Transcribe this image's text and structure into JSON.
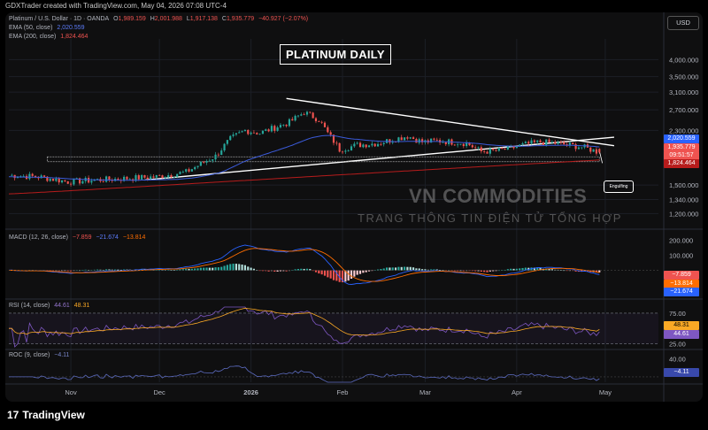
{
  "header": {
    "topline": "GDXTrader created with TradingView.com, May 04, 2026 07:08 UTC-4",
    "currency_button": "USD",
    "title_box": "PLATINUM DAILY",
    "engulfing_label": "Engulfing"
  },
  "legend": {
    "symbol": "Platinum / U.S. Dollar · 1D · OANDA",
    "o_label": "O",
    "o_value": "1,989.159",
    "h_label": "H",
    "h_value": "2,001.988",
    "l_label": "L",
    "l_value": "1,917.138",
    "c_label": "C",
    "c_value": "1,935.779",
    "change": "−40.927 (−2.07%)",
    "ema50_label": "EMA (50, close)",
    "ema50_value": "2,020.559",
    "ema200_label": "EMA (200, close)",
    "ema200_value": "1,824.464",
    "macd_label": "MACD (12, 26, close)",
    "macd_v1": "−7.859",
    "macd_v2": "−21.674",
    "macd_v3": "−13.814",
    "rsi_label": "RSI (14, close)",
    "rsi_v1": "44.61",
    "rsi_v2": "48.31",
    "roc_label": "ROC (9, close)",
    "roc_v1": "−4.11"
  },
  "watermark": {
    "line1": "VN COMMODITIES",
    "line2": "TRANG THÔNG TIN ĐIỆN TỬ TỔNG HỢP"
  },
  "footer": {
    "brand": "TradingView",
    "brand_mark": "17"
  },
  "price_tags": {
    "ema50": "2,020.559",
    "close": "1,935.779",
    "countdown": "09:51:57",
    "ema200": "1,824.464",
    "macd_a": "−7.859",
    "macd_b": "−13.814",
    "macd_c": "−21.674",
    "rsi_a": "48.31",
    "rsi_b": "44.61",
    "roc_a": "−4.11"
  },
  "colors": {
    "up": "#26a69a",
    "down": "#ef5350",
    "ema50": "#3b5bdb",
    "ema200": "#b71c1c",
    "macd": "#2962ff",
    "signal": "#ff6d00",
    "rsi": "#7e57c2",
    "rsi_ma": "#f9a825",
    "roc": "#5c6bc0"
  },
  "chart_data": [
    {
      "type": "candlestick",
      "panel": "price",
      "scale": "log",
      "ylim": [
        1100,
        4700
      ],
      "y_ticks": [
        "4,000.000",
        "3,500.000",
        "3,100.000",
        "2,700.000",
        "2,300.000",
        "1,500.000",
        "1,340.000",
        "1,200.000"
      ],
      "y_tick_values": [
        4000,
        3500,
        3100,
        2700,
        2300,
        1500,
        1340,
        1200
      ],
      "x_ticks": [
        "Nov",
        "Dec",
        "2026",
        "Feb",
        "Mar",
        "Apr",
        "May"
      ],
      "x_tick_days": [
        21,
        51,
        82,
        113,
        141,
        172,
        202
      ],
      "days_range": [
        0,
        220
      ],
      "ohlc_anchors": {
        "days": [
          0,
          10,
          20,
          30,
          40,
          50,
          60,
          70,
          75,
          80,
          85,
          90,
          95,
          100,
          105,
          108,
          112,
          118,
          125,
          135,
          140,
          145,
          155,
          160,
          165,
          170,
          175,
          180,
          185,
          190,
          195,
          200
        ],
        "close": [
          1620,
          1600,
          1540,
          1560,
          1580,
          1600,
          1660,
          1880,
          2150,
          2300,
          2250,
          2350,
          2450,
          2650,
          2500,
          2250,
          1980,
          2050,
          2080,
          2200,
          2100,
          2120,
          2080,
          1950,
          1960,
          2000,
          2060,
          2100,
          2080,
          2050,
          2010,
          1936
        ]
      },
      "last_candle": {
        "open": 1989.159,
        "high": 2001.988,
        "low": 1917.138,
        "close": 1935.779
      },
      "ema50_last": 2020.559,
      "ema200_last": 1824.464,
      "annotations": [
        "PLATINUM DAILY",
        "Engulfing"
      ]
    },
    {
      "type": "macd",
      "panel": "macd",
      "ylim": [
        -180,
        210
      ],
      "y_ticks": [
        "200.000",
        "100.000"
      ],
      "y_tick_values": [
        200,
        100
      ],
      "macd_last": -21.674,
      "signal_last": -13.814,
      "hist_last": -7.859
    },
    {
      "type": "line",
      "panel": "rsi",
      "ylim": [
        20,
        85
      ],
      "y_ticks": [
        "75.00",
        "25.00"
      ],
      "y_tick_values": [
        75,
        25
      ],
      "rsi_last": 44.61,
      "rsi_ma_last": 48.31
    },
    {
      "type": "line",
      "panel": "roc",
      "ylim": [
        -12,
        45
      ],
      "y_ticks": [
        "40.00"
      ],
      "y_tick_values": [
        40
      ],
      "roc_last": -4.11
    }
  ]
}
